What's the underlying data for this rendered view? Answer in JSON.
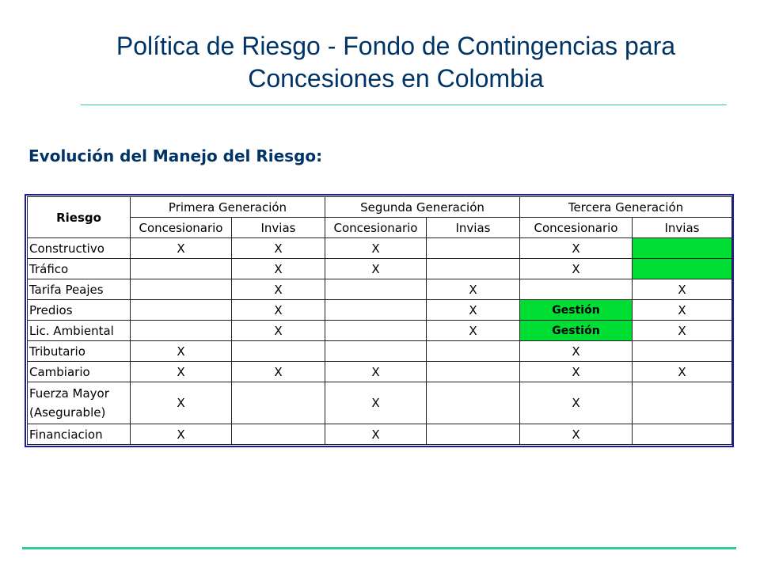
{
  "header": {
    "title_line1": "Política de Riesgo - Fondo de Contingencias para",
    "title_line2": "Concesiones en Colombia"
  },
  "subtitle": "Evolución del Manejo del Riesgo:",
  "table": {
    "corner": "Riesgo",
    "generations": [
      "Primera Generación",
      "Segunda Generación",
      "Tercera Generación"
    ],
    "subheaders": [
      "Concesionario",
      "Invias",
      "Concesionario",
      "Invias",
      "Concesionario",
      "Invias"
    ],
    "rows": [
      {
        "label": "Constructivo",
        "cells": [
          "X",
          "X",
          "X",
          "",
          "X",
          ""
        ]
      },
      {
        "label": "Tráfico",
        "cells": [
          "",
          "X",
          "X",
          "",
          "X",
          ""
        ]
      },
      {
        "label": "Tarifa Peajes",
        "cells": [
          "",
          "X",
          "",
          "X",
          "",
          "X"
        ]
      },
      {
        "label": "Predios",
        "cells": [
          "",
          "X",
          "",
          "X",
          "Gestión",
          "X"
        ]
      },
      {
        "label": "Lic. Ambiental",
        "cells": [
          "",
          "X",
          "",
          "X",
          "Gestión",
          "X"
        ]
      },
      {
        "label": "Tributario",
        "cells": [
          "X",
          "",
          "",
          "",
          "X",
          ""
        ]
      },
      {
        "label": "Cambiario",
        "cells": [
          "X",
          "X",
          "X",
          "",
          "X",
          "X"
        ]
      },
      {
        "label_line1": "Fuerza Mayor",
        "label_line2": "(Asegurable)",
        "cells": [
          "X",
          "",
          "X",
          "",
          "X",
          ""
        ]
      },
      {
        "label": "Financiacion",
        "cells": [
          "X",
          "",
          "X",
          "",
          "X",
          ""
        ]
      }
    ],
    "highlight_color": "#00dd33"
  },
  "colors": {
    "title": "#003366",
    "rule": "#33cc99",
    "frame": "#1a1aa8"
  }
}
